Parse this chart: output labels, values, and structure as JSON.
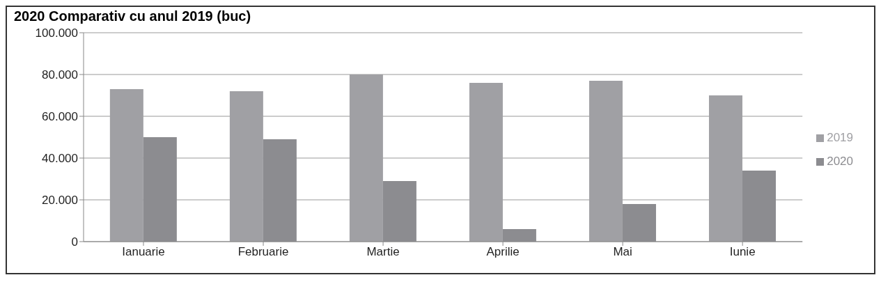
{
  "chart_data": {
    "type": "bar",
    "title": "2020 Comparativ cu anul 2019 (buc)",
    "categories": [
      "Ianuarie",
      "Februarie",
      "Martie",
      "Aprilie",
      "Mai",
      "Iunie"
    ],
    "series": [
      {
        "name": "2019",
        "color": "#a0a0a4",
        "values": [
          73000,
          72000,
          80000,
          76000,
          77000,
          70000
        ]
      },
      {
        "name": "2020",
        "color": "#8c8c90",
        "values": [
          50000,
          49000,
          29000,
          6000,
          18000,
          34000
        ]
      }
    ],
    "ylim": [
      0,
      100000
    ],
    "yticks": [
      {
        "value": 0,
        "label": "0"
      },
      {
        "value": 20000,
        "label": "20.000"
      },
      {
        "value": 40000,
        "label": "40.000"
      },
      {
        "value": 60000,
        "label": "60.000"
      },
      {
        "value": 80000,
        "label": "80.000"
      },
      {
        "value": 100000,
        "label": "100.000"
      }
    ],
    "grid": "y",
    "legend": "right"
  }
}
